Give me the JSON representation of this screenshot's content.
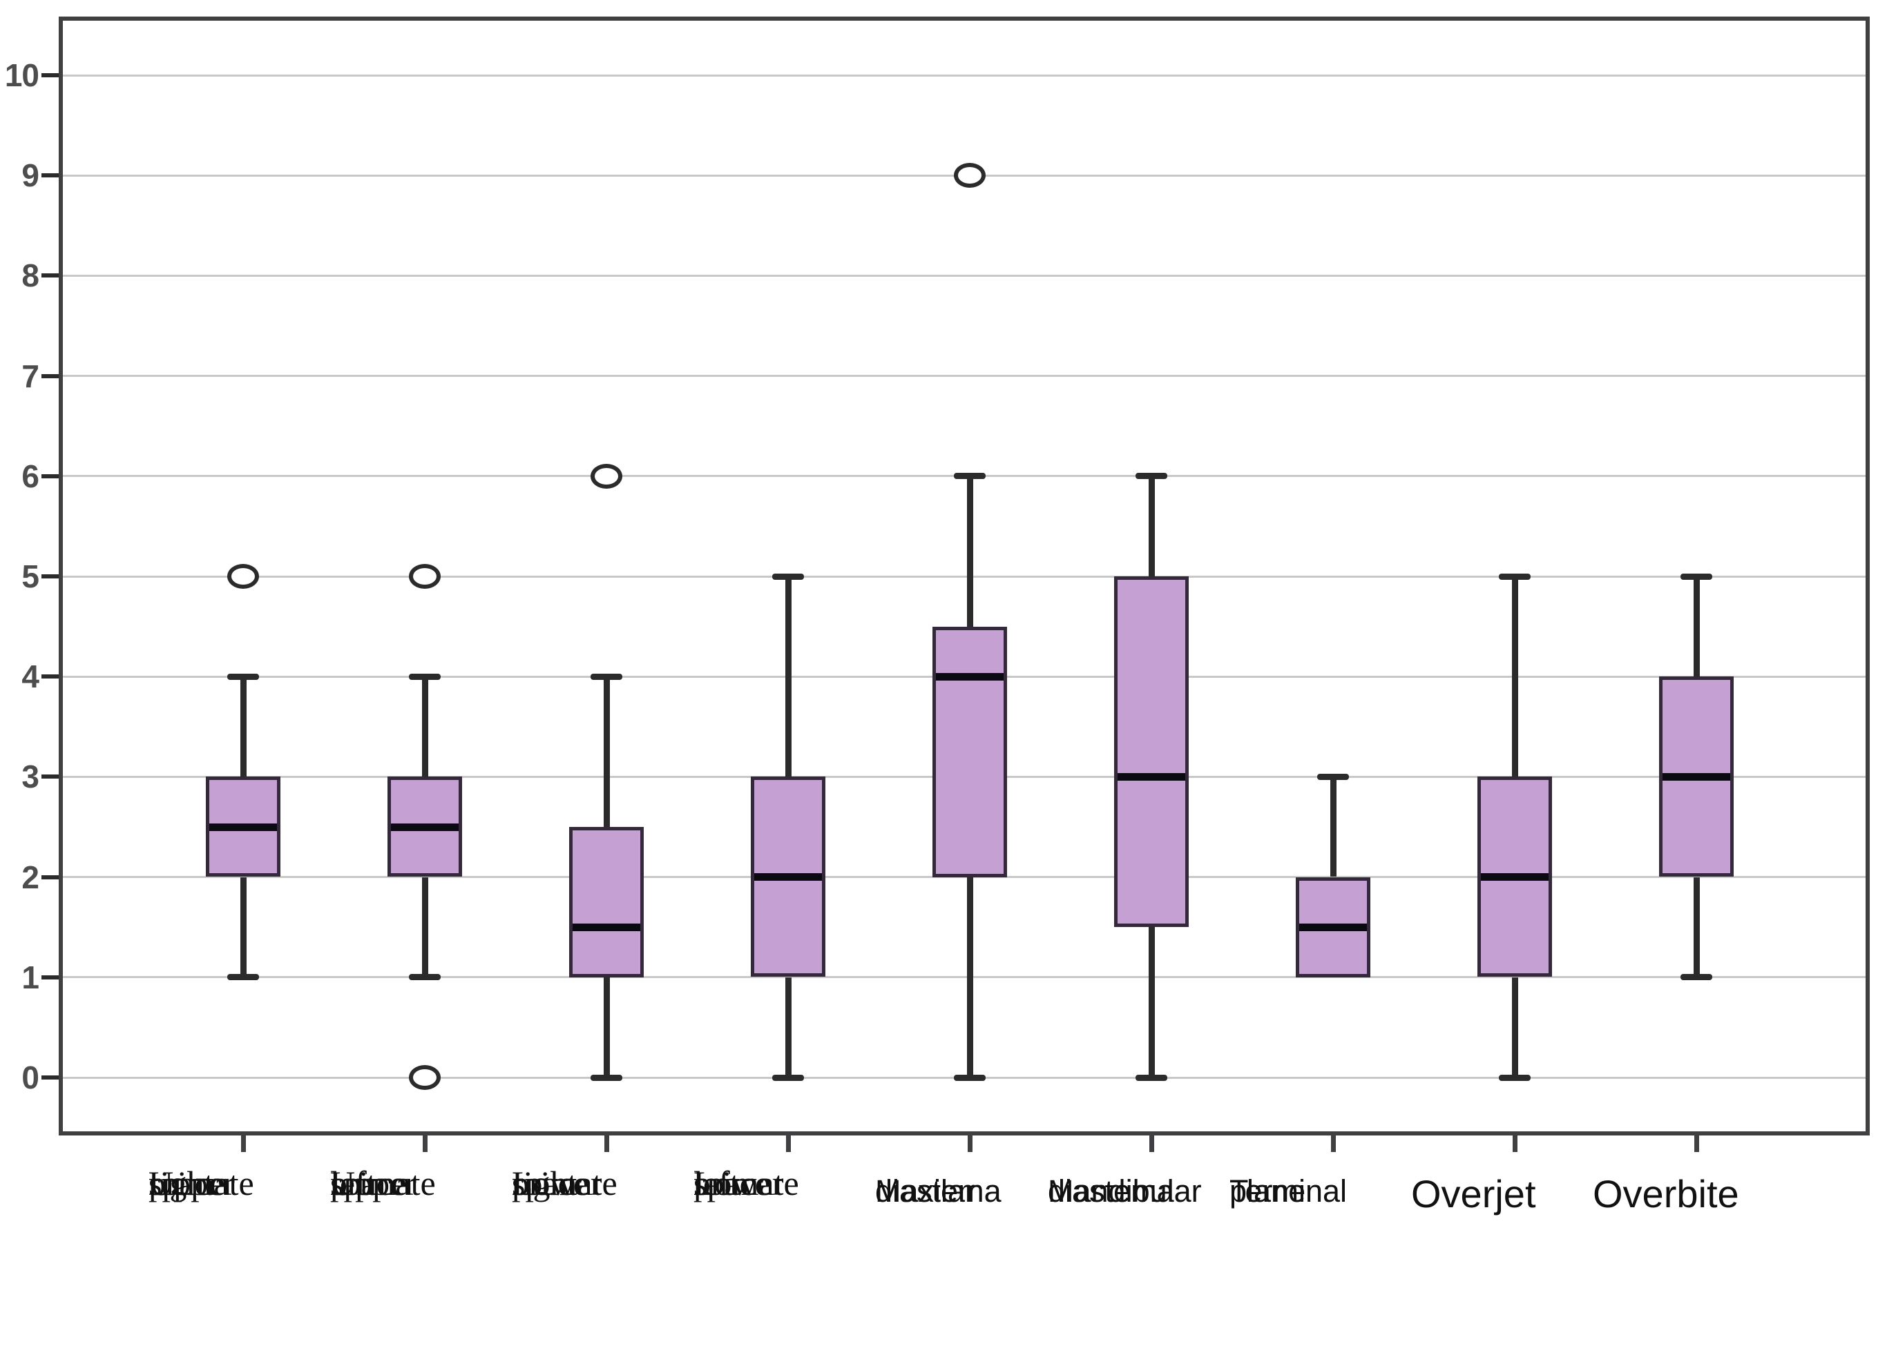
{
  "chart_data": {
    "type": "boxplot",
    "title": "",
    "y_axis": {
      "min": 0,
      "max": 10,
      "ticks": [
        0,
        1,
        2,
        3,
        4,
        5,
        6,
        7,
        8,
        9,
        10
      ],
      "grid": true
    },
    "legend": "none",
    "categories": [
      {
        "label": "Upper right primate space",
        "label_lines": [
          "Upper",
          "right",
          "primate",
          "space"
        ],
        "label_font": "serif",
        "label_align": "left",
        "label_size": "normal",
        "whisker_low": 1,
        "q1": 2,
        "median": 2.5,
        "q3": 3,
        "whisker_high": 4,
        "outliers": [
          5
        ]
      },
      {
        "label": "Upper left primate space",
        "label_lines": [
          "Upper",
          "left",
          "primate",
          "space"
        ],
        "label_font": "serif",
        "label_align": "left",
        "label_size": "normal",
        "whisker_low": 1,
        "q1": 2,
        "median": 2.5,
        "q3": 3,
        "whisker_high": 4,
        "outliers": [
          5,
          0
        ]
      },
      {
        "label": "Lower right primate space",
        "label_lines": [
          "Lower",
          "right",
          "primate",
          "space"
        ],
        "label_font": "serif",
        "label_align": "left",
        "label_size": "normal",
        "whisker_low": 0,
        "q1": 1,
        "median": 1.5,
        "q3": 2.5,
        "whisker_high": 4,
        "outliers": [
          6
        ]
      },
      {
        "label": "Lower left primate space",
        "label_lines": [
          "Lower",
          "left",
          "primate",
          "space"
        ],
        "label_font": "serif",
        "label_align": "left",
        "label_size": "normal",
        "whisker_low": 0,
        "q1": 1,
        "median": 2,
        "q3": 3,
        "whisker_high": 5,
        "outliers": []
      },
      {
        "label": "Maxilar diastema",
        "label_lines": [
          "Maxilar",
          "diastema"
        ],
        "label_font": "sans",
        "label_align": "left",
        "label_size": "normal",
        "whisker_low": 0,
        "q1": 2,
        "median": 4,
        "q3": 4.5,
        "whisker_high": 6,
        "outliers": [
          9
        ]
      },
      {
        "label": "Mandibular diastema",
        "label_lines": [
          "Mandibular",
          "diastema"
        ],
        "label_font": "sans",
        "label_align": "center",
        "label_size": "normal",
        "whisker_low": 0,
        "q1": 1.5,
        "median": 3,
        "q3": 5,
        "whisker_high": 6,
        "outliers": []
      },
      {
        "label": "Terminal plane",
        "label_lines": [
          "Terminal",
          "plane"
        ],
        "label_font": "sans",
        "label_align": "center",
        "label_size": "normal",
        "whisker_low": 1,
        "q1": 1,
        "median": 1.5,
        "q3": 2,
        "whisker_high": 3,
        "outliers": []
      },
      {
        "label": "Overjet",
        "label_lines": [
          "Overjet"
        ],
        "label_font": "sans",
        "label_align": "center",
        "label_size": "large",
        "whisker_low": 0,
        "q1": 1,
        "median": 2,
        "q3": 3,
        "whisker_high": 5,
        "outliers": []
      },
      {
        "label": "Overbite",
        "label_lines": [
          "Overbite"
        ],
        "label_font": "sans",
        "label_align": "center",
        "label_size": "large",
        "whisker_low": 1,
        "q1": 2,
        "median": 3,
        "q3": 4,
        "whisker_high": 5,
        "outliers": []
      }
    ],
    "colors": {
      "background": "#ffffff",
      "box_fill": "#c5a1d3",
      "box_border": "#33293a",
      "median": "#0b0a12",
      "whisker": "#2b2b2b",
      "gridline": "#c8c8c8",
      "frame": "#404043",
      "axis_tick_text": "#4d4d4d",
      "label_text": "#111111"
    }
  }
}
